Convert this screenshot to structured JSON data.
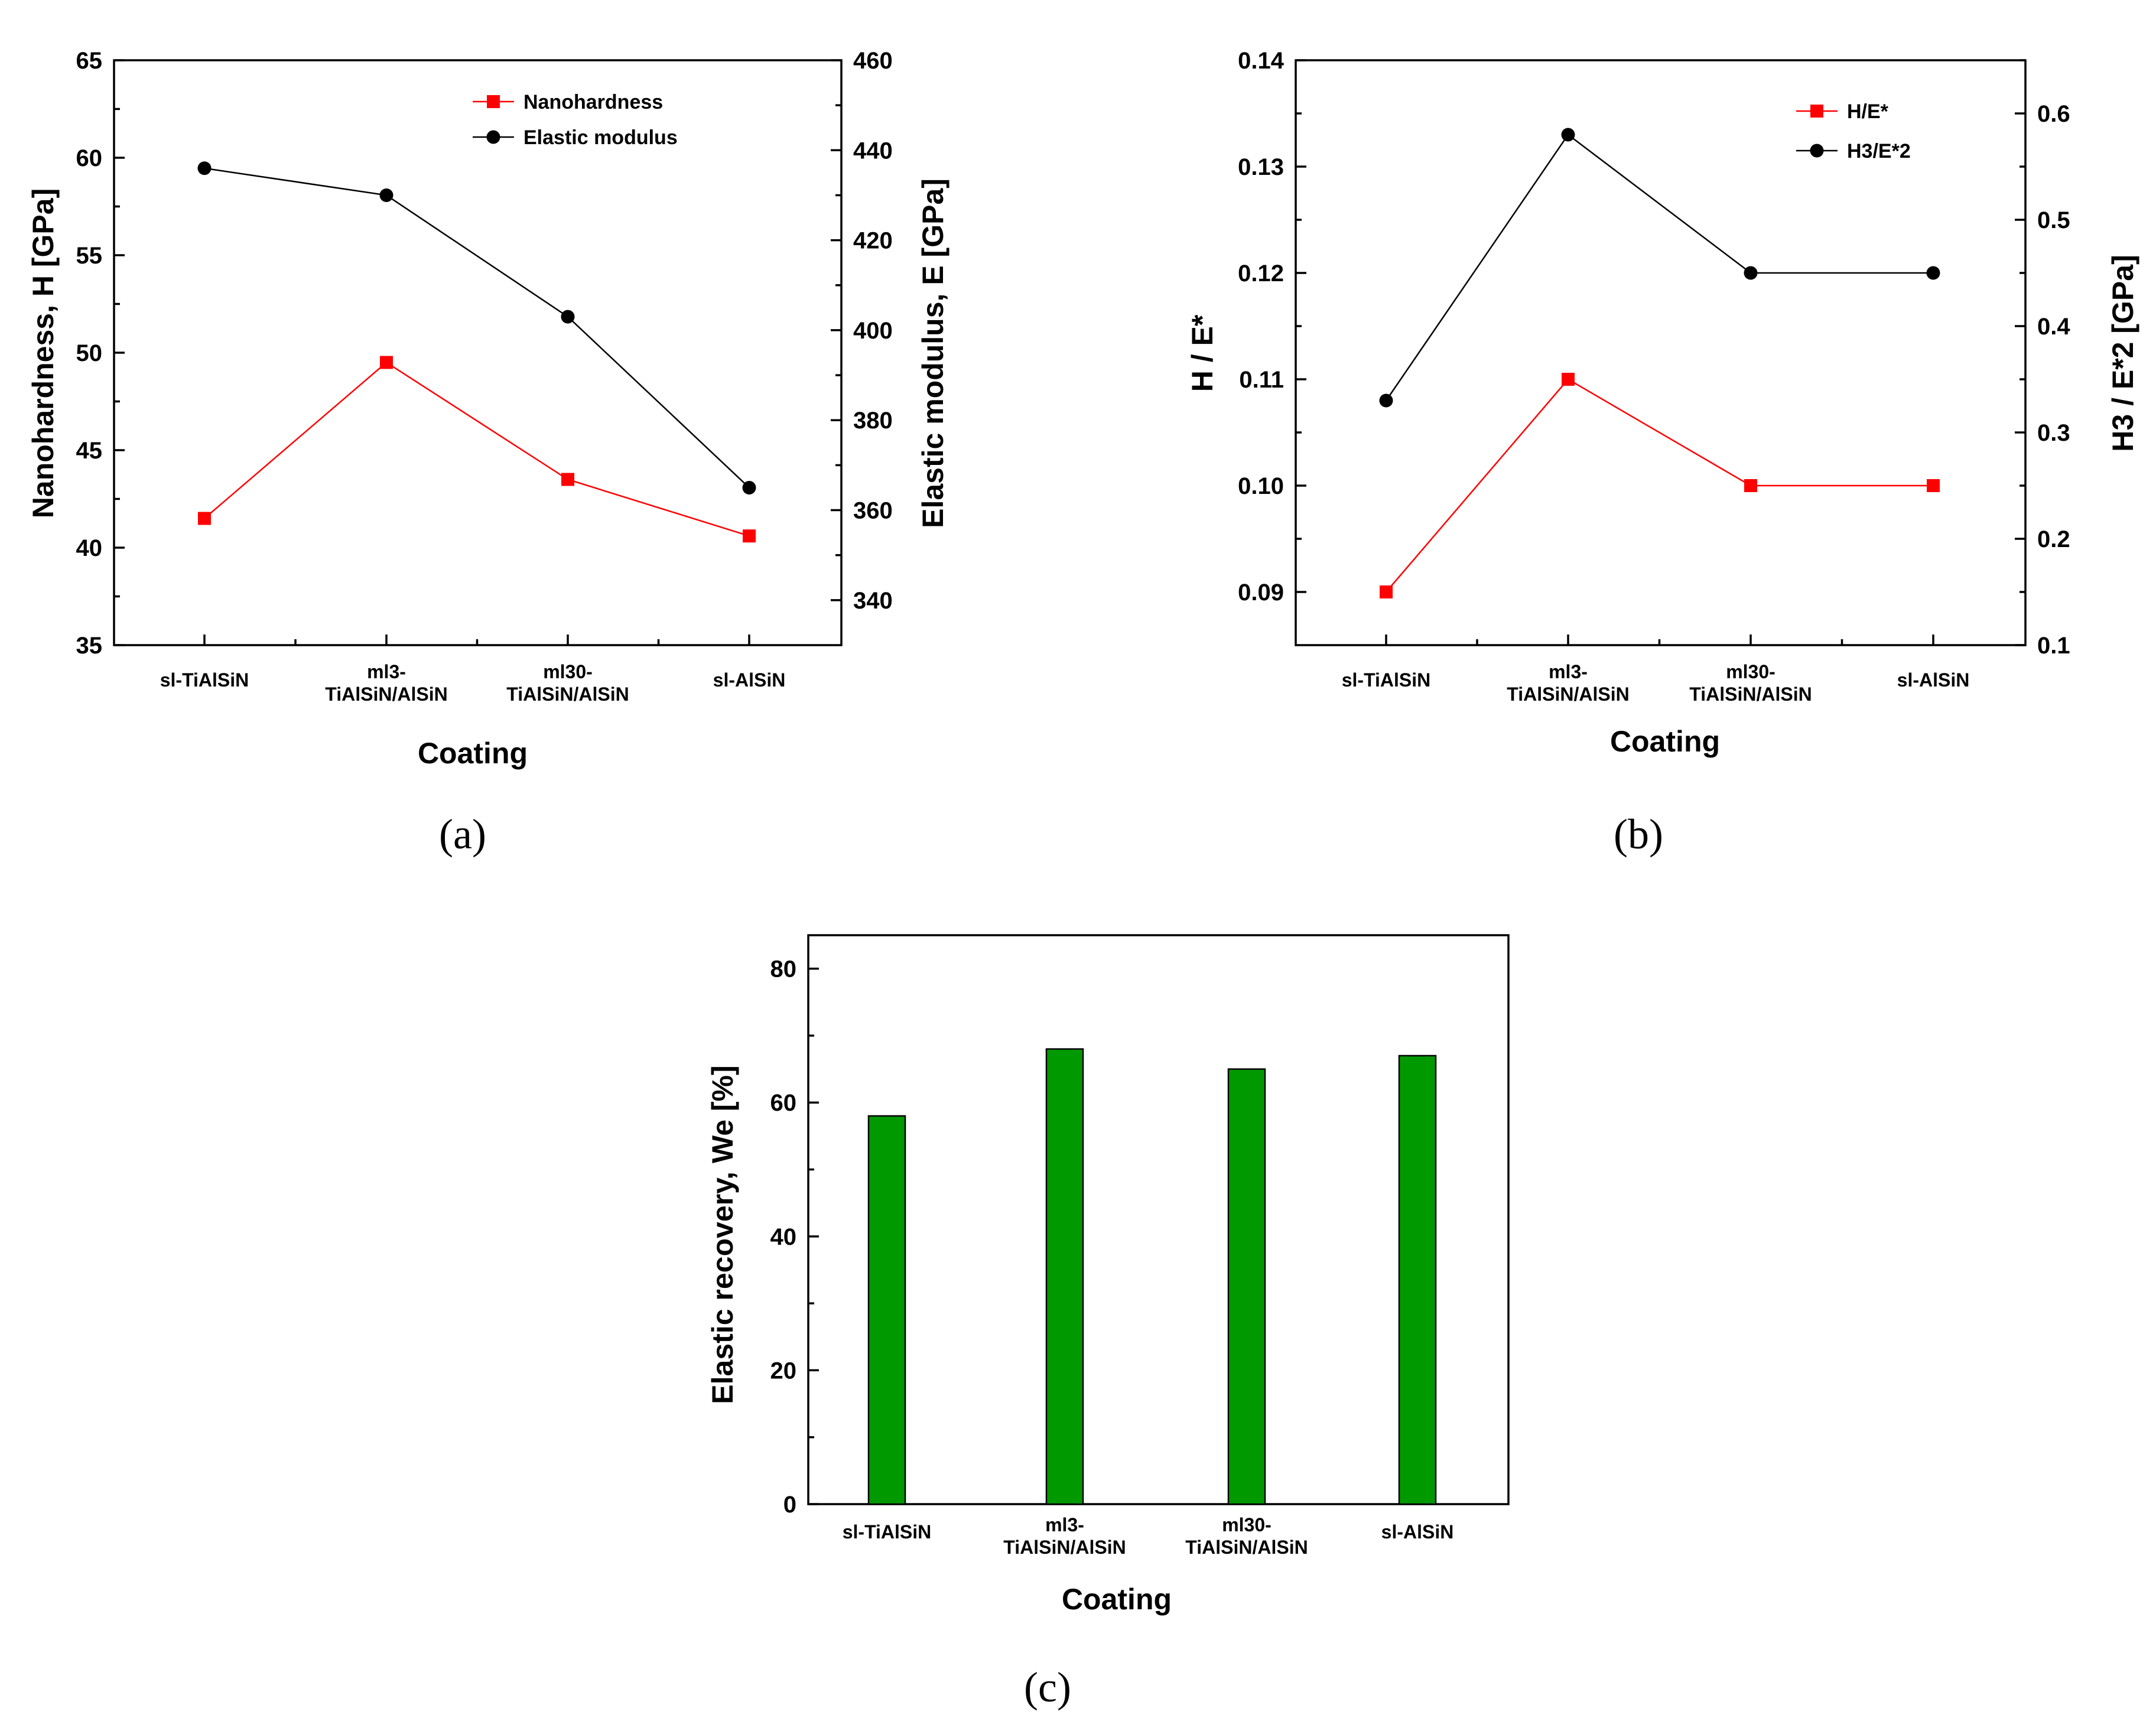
{
  "chart_data": [
    {
      "panel": "(a)",
      "type": "line",
      "categories": [
        "sl-TiAlSiN",
        "ml3-\nTiAlSiN/AlSiN",
        "ml30-\nTiAlSiN/AlSiN",
        "sl-AlSiN"
      ],
      "xlabel": "Coating",
      "ylabel_left": "Nanohardness,  H  [GPa]",
      "ylabel_right": "Elastic modulus,  E  [GPa]",
      "ylim_left": [
        35,
        65
      ],
      "yticks_left": [
        35,
        40,
        45,
        50,
        55,
        60,
        65
      ],
      "ylim_right": [
        330,
        460
      ],
      "yticks_right": [
        340,
        360,
        380,
        400,
        420,
        440,
        460
      ],
      "legend_position": "top-right",
      "series": [
        {
          "name": "Nanohardness",
          "axis": "left",
          "color": "#ff0000",
          "marker": "square",
          "values": [
            41.5,
            49.5,
            43.5,
            40.6
          ]
        },
        {
          "name": "Elastic modulus",
          "axis": "right",
          "color": "#000000",
          "marker": "circle",
          "values": [
            436,
            430,
            403,
            365
          ]
        }
      ]
    },
    {
      "panel": "(b)",
      "type": "line",
      "categories": [
        "sl-TiAlSiN",
        "ml3-\nTiAlSiN/AlSiN",
        "ml30-\nTiAlSiN/AlSiN",
        "sl-AlSiN"
      ],
      "xlabel": "Coating",
      "ylabel_left": "H / E*",
      "ylabel_right": "H3 / E*2  [GPa]",
      "ylim_left": [
        0.085,
        0.14
      ],
      "yticks_left": [
        "0.09",
        "0.10",
        "0.11",
        "0.12",
        "0.13",
        "0.14"
      ],
      "ylim_right": [
        0.1,
        0.65
      ],
      "yticks_right": [
        "0.1",
        "0.2",
        "0.3",
        "0.4",
        "0.5",
        "0.6"
      ],
      "legend_position": "top-right",
      "series": [
        {
          "name": "H/E*",
          "axis": "left",
          "color": "#ff0000",
          "marker": "square",
          "values": [
            0.09,
            0.11,
            0.1,
            0.1
          ]
        },
        {
          "name": "H3/E*2",
          "axis": "right",
          "color": "#000000",
          "marker": "circle",
          "values": [
            0.33,
            0.58,
            0.45,
            0.45
          ]
        }
      ]
    },
    {
      "panel": "(c)",
      "type": "bar",
      "categories": [
        "sl-TiAlSiN",
        "ml3-\nTiAlSiN/AlSiN",
        "ml30-\nTiAlSiN/AlSiN",
        "sl-AlSiN"
      ],
      "xlabel": "Coating",
      "ylabel": "Elastic recovery,  We  [%]",
      "ylim": [
        0,
        85
      ],
      "yticks": [
        0,
        20,
        40,
        60,
        80
      ],
      "bar_color": "#009900",
      "values": [
        58,
        68,
        65,
        67
      ]
    }
  ]
}
